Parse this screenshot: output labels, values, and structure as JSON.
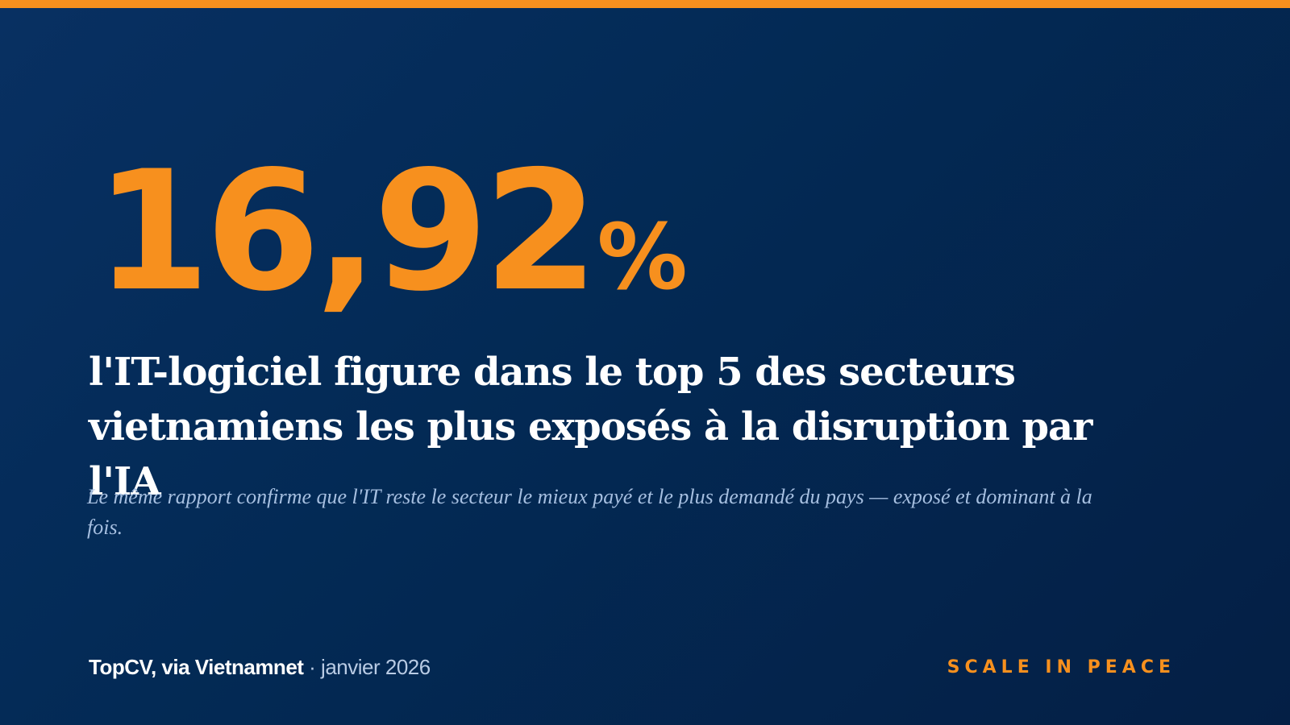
{
  "stat": {
    "number": "16,92",
    "unit": "%"
  },
  "headline": "l'IT-logiciel figure dans le top 5 des secteurs vietnamiens les plus exposés à la disruption par l'IA",
  "subtitle": "Le même rapport confirme que l'IT reste le secteur le mieux payé et le plus demandé du pays — exposé et dominant à la fois.",
  "footer": {
    "source": "TopCV, via Vietnamnet",
    "separator": " · ",
    "date": "janvier 2026",
    "brand": "SCALE IN PEACE"
  },
  "colors": {
    "accent": "#f7901e",
    "background_top": "#083062",
    "background_bottom": "#041f45",
    "headline": "#ffffff",
    "subtitle": "#a6bfe0"
  }
}
